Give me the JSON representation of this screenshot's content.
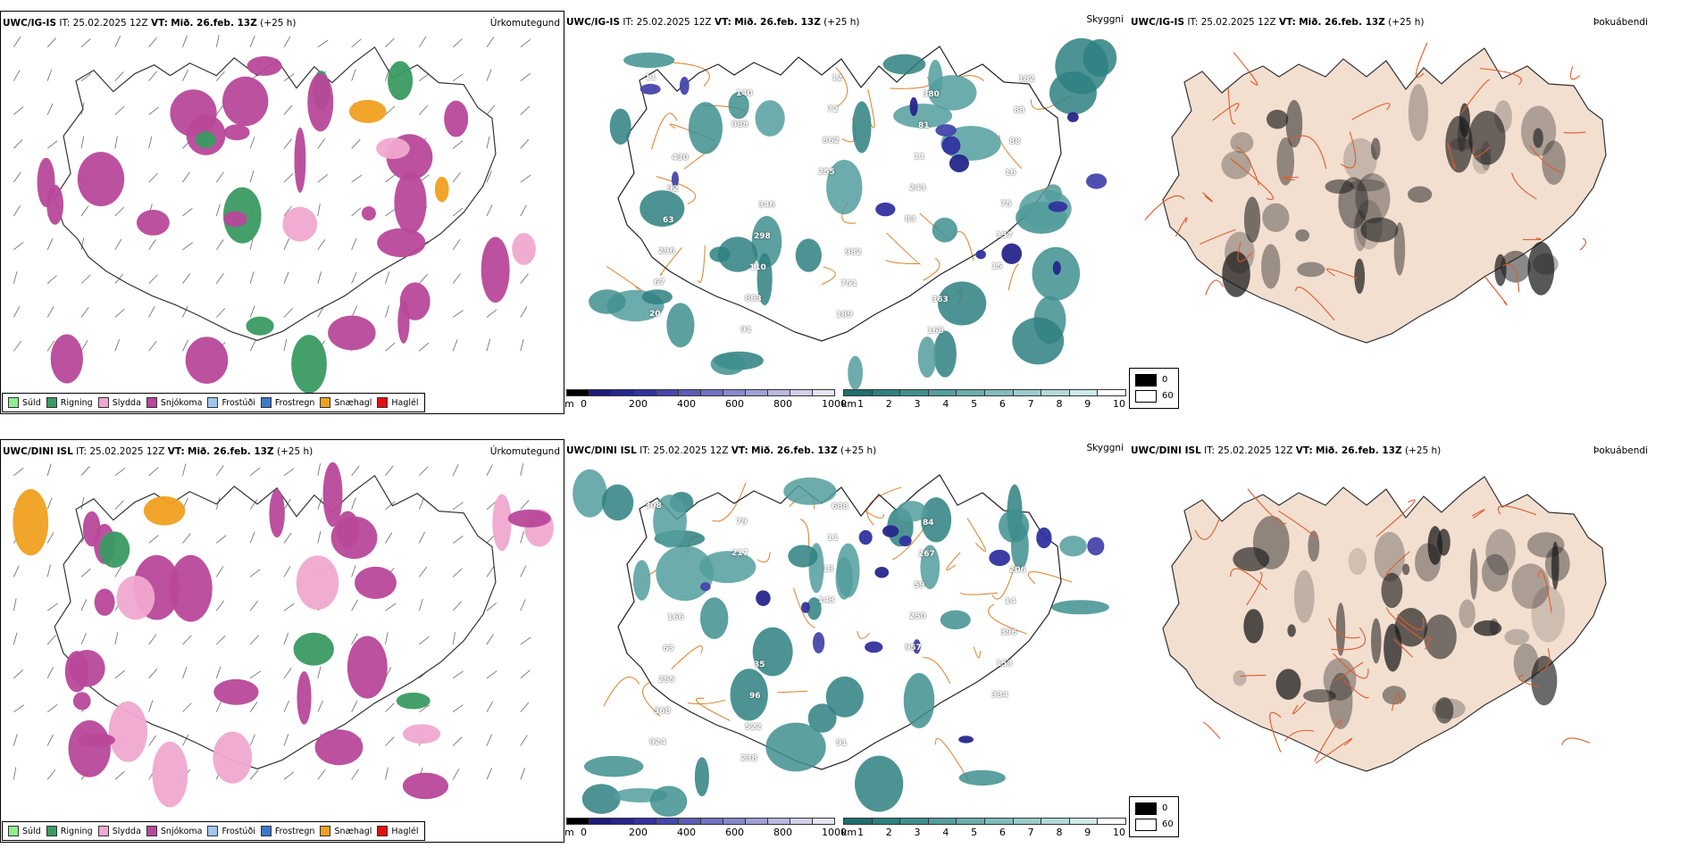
{
  "rows": [
    {
      "model": "UWC/IG-IS",
      "it_label": "IT:",
      "it_value": "25.02.2025 12Z",
      "vt_label": "VT:",
      "vt_value": "Mið. 26.feb. 13Z",
      "lead": "(+25 h)",
      "precip_title": "Úrkomutegund",
      "cloud_title": "Skyggni",
      "third_title": "Þokuábendi",
      "elev_labels": [
        "11",
        "988",
        "255",
        "83",
        "15",
        "20",
        "140",
        "862",
        "243",
        "137",
        "67",
        "91",
        "72",
        "11",
        "75",
        "296",
        "863",
        "12",
        "81",
        "16",
        "63",
        "110",
        "189",
        "380",
        "88",
        "92",
        "298",
        "751",
        "168",
        "88",
        "430",
        "346",
        "982",
        "363",
        "182"
      ]
    },
    {
      "model": "UWC/DINI ISL",
      "it_label": "IT:",
      "it_value": "25.02.2025 12Z",
      "vt_label": "VT:",
      "vt_value": "Mið. 26.feb. 13Z",
      "lead": "(+25 h)",
      "precip_title": "Úrkomutegund",
      "cloud_title": "Skyggni",
      "third_title": "Þokuábendi",
      "elev_labels": [
        "308",
        "217",
        "143",
        "957",
        "334",
        "924",
        "79",
        "13",
        "250",
        "153",
        "368",
        "238",
        "11",
        "59",
        "396",
        "255",
        "522",
        "688",
        "267",
        "14",
        "63",
        "96",
        "91",
        "84",
        "206",
        "166",
        "35"
      ]
    }
  ],
  "precip_legend": [
    {
      "label": "Súld",
      "color": "#90ee90"
    },
    {
      "label": "Rigning",
      "color": "#3a9a62"
    },
    {
      "label": "Slydda",
      "color": "#f0a8d0"
    },
    {
      "label": "Snjókoma",
      "color": "#b8489a"
    },
    {
      "label": "Frostúði",
      "color": "#9ec8f0"
    },
    {
      "label": "Frostregn",
      "color": "#3c78c8"
    },
    {
      "label": "Snæhagl",
      "color": "#f0a020"
    },
    {
      "label": "Haglél",
      "color": "#e01010"
    }
  ],
  "elevation_bar": {
    "unit": "m",
    "ticks": [
      "0",
      "200",
      "400",
      "600",
      "800",
      "1000"
    ],
    "colors": [
      "#000000",
      "#1c1c7a",
      "#26268c",
      "#3232a0",
      "#4646ac",
      "#5c5cb8",
      "#7272c2",
      "#8888cc",
      "#a0a0d6",
      "#b8b8e0",
      "#d0d0ea",
      "#e4e4f4"
    ]
  },
  "ceiling_bar": {
    "unit": "km",
    "ticks": [
      "1",
      "2",
      "3",
      "4",
      "5",
      "6",
      "7",
      "8",
      "9",
      "10"
    ],
    "colors": [
      "#1f6f6f",
      "#2e8080",
      "#3f8f8f",
      "#549e9e",
      "#6aadad",
      "#82bcbc",
      "#9acbcb",
      "#b4dada",
      "#cee9e9",
      "#ffffff"
    ]
  },
  "cloud_legend": {
    "values": [
      "0",
      "60"
    ]
  }
}
